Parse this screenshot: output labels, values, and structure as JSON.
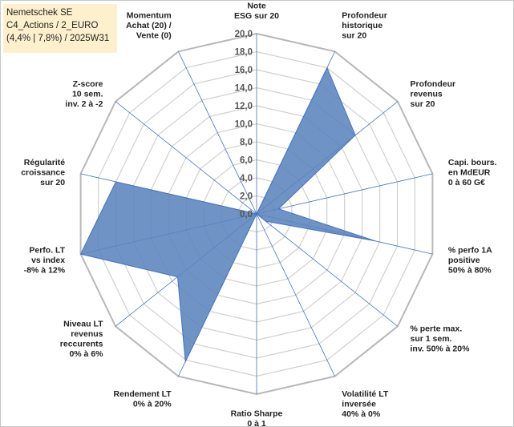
{
  "info_box": {
    "line1": "Nemetschek SE",
    "line2": "C4_Actions / 2_EURO",
    "line3": "(4,4% | 7,8%) / 2025W31"
  },
  "colors": {
    "fill": "#5b84bc",
    "stroke": "#4472c4",
    "grid": "#d0d0d0",
    "spoke": "#4472c4"
  },
  "chart_data": {
    "type": "radar",
    "title": "",
    "rmin": 0,
    "rmax": 20,
    "tick_labels": [
      "0,0",
      "2,0",
      "4,0",
      "6,0",
      "8,0",
      "10,0",
      "12,0",
      "14,0",
      "16,0",
      "18,0",
      "20,0"
    ],
    "axes": [
      {
        "label": [
          "Note",
          "ESG sur 20"
        ],
        "value": 0
      },
      {
        "label": [
          "Profondeur",
          "historique",
          "sur 20"
        ],
        "value": 18
      },
      {
        "label": [
          "Profondeur",
          "revenus",
          "sur 20"
        ],
        "value": 14
      },
      {
        "label": [
          "Capi. bours.",
          "en MdEUR",
          "0 à 60 G€"
        ],
        "value": 2.5
      },
      {
        "label": [
          "% perfo 1A",
          "positive",
          "50% à 80%"
        ],
        "value": 13.5
      },
      {
        "label": [
          "% perte max.",
          "sur 1 sem.",
          "inv. 50% à 20%"
        ],
        "value": 1.3
      },
      {
        "label": [
          "Volatilité LT",
          "inversée",
          "40% à 0%"
        ],
        "value": 0
      },
      {
        "label": [
          "Ratio Sharpe",
          "0 à 1"
        ],
        "value": 0
      },
      {
        "label": [
          "Rendement LT",
          "0% à 20%"
        ],
        "value": 18.2
      },
      {
        "label": [
          "Niveau LT",
          "revenus",
          "reccurents",
          "0% à 6%"
        ],
        "value": 11.2
      },
      {
        "label": [
          "Perfo. LT",
          "vs index",
          "-8% à 12%"
        ],
        "value": 20
      },
      {
        "label": [
          "Régularité",
          "croissance",
          "sur 20"
        ],
        "value": 16
      },
      {
        "label": [
          "Z-score",
          "10 sem.",
          "inv. 2 à -2"
        ],
        "value": 0
      },
      {
        "label": [
          "Momentum",
          "Achat (20) /",
          "Vente (0)"
        ],
        "value": 0
      }
    ]
  }
}
